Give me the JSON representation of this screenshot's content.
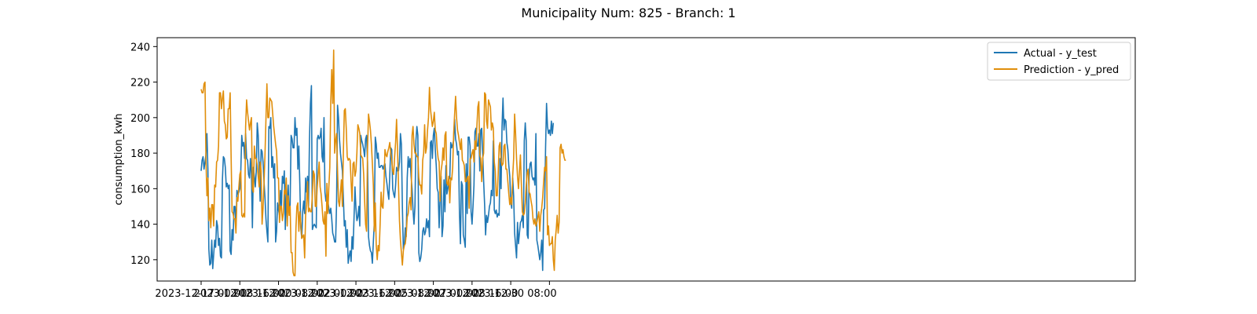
{
  "chart_data": {
    "type": "line",
    "title": "Municipality Num: 825 - Branch: 1",
    "xlabel": "",
    "ylabel": "consumption_kwh",
    "ylim": [
      108,
      245
    ],
    "y_ticks": [
      120,
      140,
      160,
      180,
      200,
      220,
      240
    ],
    "x_tick_labels": [
      "2023-12-17 00:00",
      "2023-12-18 16:00",
      "2023-12-20 08:00",
      "2023-12-22 00:00",
      "2023-12-23 16:00",
      "2023-12-25 08:00",
      "2023-12-27 00:00",
      "2023-12-28 16:00",
      "2023-12-30 08:00",
      ""
    ],
    "x_start": "2023-12-17 00:00",
    "x_step": "1 hour",
    "grid": false,
    "legend_position": "top-right",
    "colors": {
      "actual": "#1f77b4",
      "pred": "#e08e0b"
    },
    "series": [
      {
        "name": "Actual - y_test",
        "values": [
          170,
          176,
          178,
          171,
          175,
          179,
          191,
          171,
          126,
          117,
          118,
          131,
          115,
          123,
          131,
          127,
          142,
          139,
          128,
          132,
          122,
          121,
          165,
          178,
          177,
          172,
          161,
          163,
          160,
          162,
          125,
          123,
          137,
          131,
          150,
          150,
          139,
          159,
          157,
          158,
          160,
          170,
          190,
          184,
          186,
          177,
          191,
          177,
          176,
          168,
          166,
          177,
          168,
          138,
          172,
          167,
          161,
          170,
          197,
          190,
          170,
          153,
          182,
          181,
          175,
          164,
          155,
          143,
          136,
          130,
          195,
          194,
          200,
          172,
          178,
          166,
          174,
          130,
          136,
          152,
          148,
          145,
          159,
          150,
          167,
          163,
          170,
          137,
          159,
          150,
          162,
          146,
          151,
          190,
          188,
          183,
          183,
          200,
          190,
          194,
          171,
          184,
          163,
          138,
          132,
          147,
          153,
          146,
          166,
          158,
          167,
          150,
          188,
          208,
          218,
          137,
          139,
          140,
          139,
          138,
          188,
          190,
          188,
          189,
          194,
          178,
          175,
          200,
          158,
          153,
          157,
          153,
          149,
          146,
          149,
          143,
          135,
          133,
          130,
          130,
          152,
          207,
          200,
          188,
          180,
          175,
          170,
          155,
          139,
          142,
          127,
          137,
          118,
          122,
          125,
          119,
          133,
          126,
          143,
          161,
          149,
          142,
          144,
          150,
          139,
          190,
          187,
          185,
          182,
          178,
          188,
          190,
          175,
          133,
          128,
          125,
          124,
          118,
          130,
          141,
          189,
          185,
          177,
          180,
          172,
          172,
          173,
          173,
          171,
          173,
          174,
          167,
          163,
          158,
          154,
          168,
          183,
          182,
          160,
          157,
          155,
          162,
          172,
          170,
          170,
          175,
          191,
          185,
          150,
          126,
          128,
          138,
          133,
          166,
          178,
          172,
          177,
          167,
          160,
          148,
          140,
          150,
          187,
          195,
          190,
          124,
          119,
          121,
          126,
          136,
          138,
          134,
          136,
          143,
          138,
          142,
          133,
          186,
          187,
          177,
          190,
          194,
          182,
          173,
          160,
          158,
          138,
          155,
          167,
          133,
          139,
          165,
          147,
          173,
          157,
          160,
          165,
          166,
          186,
          183,
          185,
          187,
          199,
          188,
          185,
          179,
          181,
          146,
          129,
          164,
          162,
          134,
          131,
          127,
          174,
          146,
          189,
          189,
          184,
          147,
          140,
          150,
          162,
          192,
          194,
          184,
          184,
          191,
          170,
          193,
          194,
          180,
          164,
          151,
          134,
          145,
          141,
          145,
          150,
          152,
          159,
          156,
          187,
          148,
          146,
          148,
          144,
          146,
          145,
          177,
          160,
          195,
          211,
          193,
          199,
          198,
          186,
          182,
          173,
          167,
          153,
          149,
          166,
          156,
          135,
          128,
          121,
          141,
          129,
          135,
          141,
          142,
          145,
          138,
          187,
          197,
          187,
          134,
          132,
          167,
          174,
          175,
          167,
          165,
          166,
          162,
          191,
          131,
          128,
          124,
          120,
          124,
          131,
          114,
          148,
          149,
          183,
          208,
          195,
          191,
          193,
          190,
          198,
          191,
          197
        ],
        "color": "#1f77b4"
      },
      {
        "name": "Prediction - y_pred",
        "values": [
          216,
          214,
          214,
          219,
          220,
          176,
          156,
          166,
          142,
          149,
          138,
          151,
          151,
          139,
          162,
          161,
          175,
          176,
          184,
          214,
          214,
          205,
          211,
          215,
          198,
          196,
          188,
          189,
          205,
          205,
          214,
          178,
          147,
          146,
          143,
          143,
          135,
          155,
          153,
          161,
          168,
          170,
          145,
          144,
          146,
          144,
          195,
          210,
          203,
          198,
          193,
          197,
          200,
          160,
          158,
          184,
          177,
          177,
          173,
          167,
          161,
          175,
          170,
          140,
          149,
          163,
          179,
          199,
          219,
          200,
          200,
          211,
          210,
          209,
          202,
          195,
          190,
          185,
          181,
          166,
          166,
          141,
          150,
          150,
          142,
          146,
          159,
          157,
          166,
          139,
          156,
          145,
          150,
          124,
          124,
          113,
          111,
          111,
          138,
          150,
          152,
          136,
          147,
          141,
          132,
          133,
          134,
          121,
          145,
          151,
          164,
          147,
          149,
          147,
          147,
          157,
          170,
          168,
          150,
          150,
          161,
          168,
          175,
          161,
          157,
          150,
          142,
          140,
          147,
          122,
          163,
          146,
          161,
          172,
          209,
          227,
          208,
          238,
          180,
          187,
          191,
          170,
          153,
          150,
          158,
          165,
          150,
          180,
          204,
          205,
          194,
          178,
          176,
          177,
          176,
          164,
          153,
          174,
          175,
          167,
          170,
          180,
          196,
          194,
          191,
          179,
          178,
          177,
          168,
          153,
          140,
          136,
          182,
          202,
          198,
          193,
          185,
          174,
          162,
          136,
          152,
          128,
          120,
          128,
          125,
          140,
          158,
          150,
          149,
          162,
          182,
          179,
          178,
          181,
          183,
          186,
          180,
          176,
          170,
          168,
          178,
          186,
          199,
          182,
          162,
          142,
          131,
          124,
          117,
          125,
          128,
          129,
          134,
          144,
          146,
          152,
          155,
          148,
          190,
          195,
          185,
          180,
          180,
          178,
          178,
          166,
          162,
          162,
          157,
          176,
          180,
          196,
          180,
          183,
          193,
          200,
          217,
          205,
          200,
          195,
          198,
          203,
          193,
          191,
          182,
          177,
          175,
          153,
          170,
          174,
          183,
          176,
          190,
          192,
          163,
          162,
          167,
          152,
          166,
          165,
          172,
          191,
          202,
          212,
          200,
          193,
          190,
          186,
          182,
          188,
          176,
          175,
          173,
          164,
          164,
          166,
          167,
          149,
          177,
          177,
          180,
          182,
          175,
          187,
          182,
          195,
          206,
          209,
          179,
          177,
          164,
          177,
          180,
          214,
          213,
          198,
          194,
          210,
          208,
          206,
          193,
          197,
          194,
          175,
          170,
          156,
          156,
          168,
          184,
          186,
          176,
          173,
          174,
          184,
          185,
          171,
          171,
          164,
          157,
          151,
          155,
          151,
          167,
          177,
          202,
          191,
          177,
          167,
          160,
          170,
          179,
          162,
          147,
          145,
          146,
          152,
          162,
          169,
          171,
          158,
          157,
          153,
          150,
          143,
          140,
          143,
          139,
          141,
          144,
          147,
          136,
          145,
          149,
          155,
          164,
          172,
          170,
          178,
          134,
          139,
          128,
          129,
          129,
          133,
          120,
          114,
          131,
          137,
          145,
          135,
          141,
          183,
          185,
          180,
          182,
          178,
          176,
          176
        ],
        "color": "#e08e0b"
      }
    ]
  }
}
